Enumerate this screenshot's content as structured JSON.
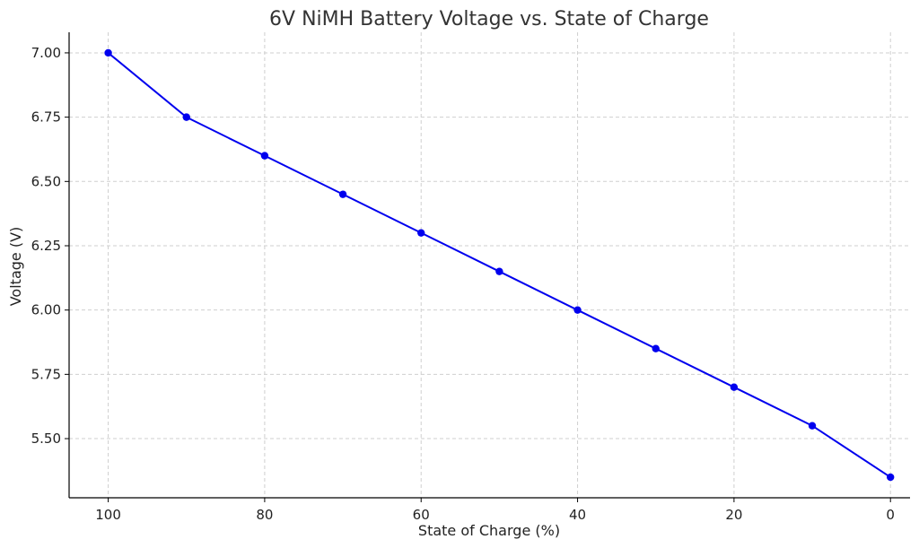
{
  "chart_data": {
    "type": "line",
    "title": "6V NiMH Battery Voltage vs. State of Charge",
    "xlabel": "State of Charge (%)",
    "ylabel": "Voltage (V)",
    "x_reversed": true,
    "xlim": [
      105,
      -2.5
    ],
    "ylim": [
      5.27,
      7.08
    ],
    "x_ticks": [
      100,
      80,
      60,
      40,
      20,
      0
    ],
    "x_tick_labels": [
      "100",
      "80",
      "60",
      "40",
      "20",
      "0"
    ],
    "y_ticks": [
      5.5,
      5.75,
      6.0,
      6.25,
      6.5,
      6.75,
      7.0
    ],
    "y_tick_labels": [
      "5.50",
      "5.75",
      "6.00",
      "6.25",
      "6.50",
      "6.75",
      "7.00"
    ],
    "grid": true,
    "series": [
      {
        "color": "#0000ee",
        "marker": "circle",
        "x": [
          100,
          90,
          80,
          70,
          60,
          50,
          40,
          30,
          20,
          10,
          0
        ],
        "y": [
          7.0,
          6.75,
          6.6,
          6.45,
          6.3,
          6.15,
          6.0,
          5.85,
          5.7,
          5.55,
          5.35
        ]
      }
    ]
  }
}
